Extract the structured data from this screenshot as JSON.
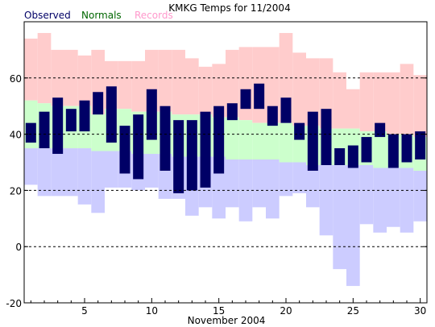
{
  "chart_data": {
    "type": "bar",
    "title": "KMKG Temps for 11/2004",
    "xlabel": "November 2004",
    "ylabel": "",
    "xlim": [
      0.5,
      30.5
    ],
    "ylim": [
      -20,
      80
    ],
    "y_ticks": [
      -20,
      0,
      20,
      40,
      60
    ],
    "x_ticks": [
      5,
      10,
      15,
      20,
      25,
      30
    ],
    "dashed_gridlines": [
      0,
      20,
      40,
      60
    ],
    "legend_position": "top-left",
    "colors": {
      "observed": "#000066",
      "normals": "#ccffcc",
      "records": "#ffcccc",
      "record_low": "#ccccff",
      "observed_text": "#000066",
      "normals_text": "#006600",
      "records_text": "#ff99cc"
    },
    "days": [
      1,
      2,
      3,
      4,
      5,
      6,
      7,
      8,
      9,
      10,
      11,
      12,
      13,
      14,
      15,
      16,
      17,
      18,
      19,
      20,
      21,
      22,
      23,
      24,
      25,
      26,
      27,
      28,
      29,
      30
    ],
    "series": [
      {
        "name": "Observed",
        "high": [
          44,
          48,
          53,
          49,
          52,
          55,
          57,
          43,
          47,
          56,
          50,
          45,
          45,
          48,
          50,
          51,
          56,
          58,
          50,
          53,
          44,
          48,
          49,
          35,
          36,
          39,
          44,
          40,
          40,
          41
        ],
        "low": [
          37,
          35,
          33,
          41,
          41,
          47,
          37,
          26,
          24,
          38,
          27,
          19,
          20,
          21,
          26,
          45,
          49,
          49,
          43,
          44,
          38,
          27,
          29,
          29,
          28,
          30,
          39,
          28,
          30,
          31
        ]
      },
      {
        "name": "Normals",
        "high": [
          52,
          51,
          50,
          50,
          50,
          47,
          49,
          49,
          48,
          48,
          48,
          47,
          47,
          47,
          46,
          46,
          45,
          44,
          44,
          44,
          43,
          43,
          42,
          42,
          42,
          41,
          41,
          40,
          40,
          39
        ],
        "low": [
          35,
          35,
          35,
          35,
          35,
          34,
          34,
          34,
          33,
          33,
          33,
          32,
          32,
          32,
          32,
          31,
          31,
          31,
          31,
          30,
          30,
          29,
          29,
          29,
          29,
          29,
          28,
          28,
          28,
          27
        ]
      },
      {
        "name": "Records",
        "high": [
          74,
          76,
          70,
          70,
          68,
          70,
          66,
          66,
          66,
          70,
          70,
          70,
          67,
          64,
          65,
          70,
          71,
          71,
          71,
          76,
          69,
          67,
          67,
          62,
          56,
          62,
          62,
          62,
          65,
          61
        ],
        "low": [
          22,
          18,
          18,
          18,
          15,
          12,
          21,
          21,
          20,
          21,
          17,
          17,
          11,
          14,
          10,
          14,
          9,
          14,
          10,
          18,
          19,
          14,
          4,
          -8,
          -14,
          8,
          5,
          7,
          5,
          9
        ]
      }
    ]
  }
}
